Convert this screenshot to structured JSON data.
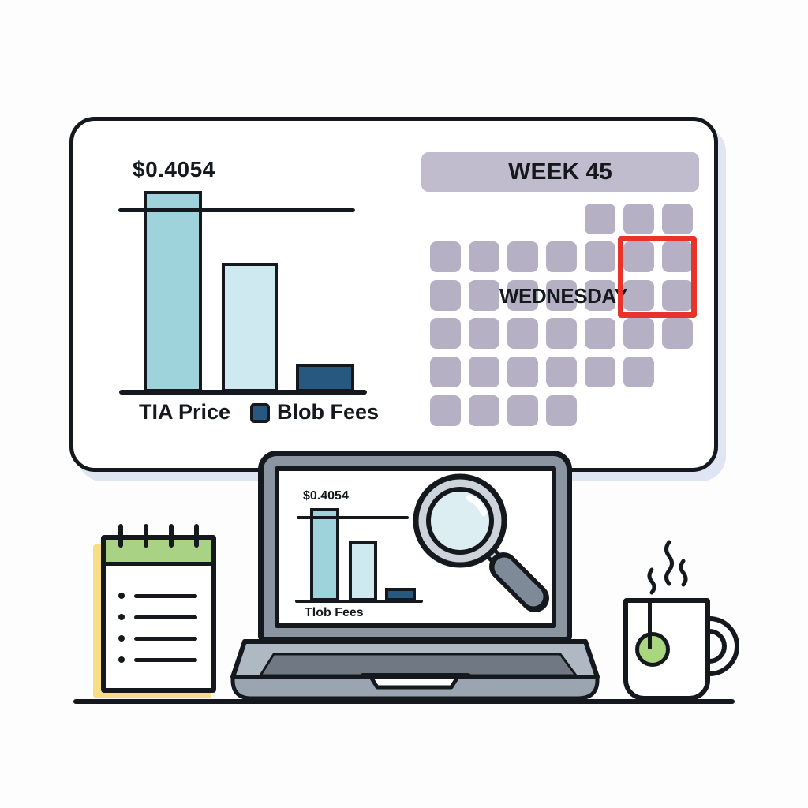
{
  "dashboard_card": {
    "price_chart": {
      "value_label": "$0.4054",
      "label_tia": "TIA Price",
      "label_blob": "Blob Fees"
    },
    "calendar": {
      "header": "WEEK 45",
      "day_label": "WEDNESDAY",
      "grid": [
        [
          0,
          0,
          0,
          0,
          1,
          1,
          1
        ],
        [
          1,
          1,
          1,
          1,
          1,
          1,
          1
        ],
        [
          1,
          1,
          1,
          1,
          1,
          1,
          1
        ],
        [
          1,
          1,
          1,
          1,
          1,
          1,
          1
        ],
        [
          1,
          1,
          1,
          1,
          1,
          1,
          0
        ],
        [
          1,
          1,
          1,
          1,
          0,
          0,
          0
        ]
      ],
      "highlight": {
        "rows": [
          1,
          2
        ],
        "cols": [
          5,
          6
        ],
        "color": "#e8332b"
      }
    }
  },
  "laptop": {
    "screen_chart": {
      "value_label": "$0.4054",
      "axis_label": "Tlob Fees"
    }
  },
  "notepad": {
    "binding_rings": 4,
    "list_items": 4
  },
  "mug": {
    "steam_wisps": 3,
    "tea_tag_color": "#a8d77f"
  },
  "palette": {
    "ink": "#15181c",
    "teal_bar": "#9ed3db",
    "ice_bar": "#cfe9f0",
    "navy_bar": "#27587f",
    "calendar_cell": "#b6b0c5",
    "calendar_header": "#c1bbce",
    "highlight_red": "#e8332b",
    "notepad_green": "#a9d284",
    "notepad_shadow_yellow": "#f6dd86",
    "card_shadow": "#dfe5f2",
    "laptop_gray": "#8b95a2",
    "lens_blue": "#ddeef3"
  },
  "chart_data": [
    {
      "type": "bar",
      "title": "TIA price vs blob fees (large card)",
      "categories": [
        "TIA Price",
        "",
        "Blob Fees"
      ],
      "values": [
        0.4054,
        0.26,
        0.057
      ],
      "value_unit": "USD",
      "data_labels": [
        "$0.4054",
        "",
        ""
      ],
      "reference_line": 0.37,
      "colors": [
        "#9ed3db",
        "#cfe9f0",
        "#27587f"
      ],
      "legend": [
        {
          "label": "Blob Fees",
          "color": "#27587f"
        }
      ],
      "xlabel": "",
      "ylabel": "",
      "grid": false
    },
    {
      "type": "bar",
      "title": "mini chart on laptop screen",
      "categories": [
        "Tlob Fees",
        "",
        ""
      ],
      "values": [
        0.4054,
        0.26,
        0.057
      ],
      "data_labels": [
        "$0.4054",
        "",
        ""
      ],
      "reference_line": 0.37,
      "colors": [
        "#9ed3db",
        "#cfe9f0",
        "#27587f"
      ],
      "xlabel": "",
      "ylabel": "",
      "grid": false
    }
  ]
}
